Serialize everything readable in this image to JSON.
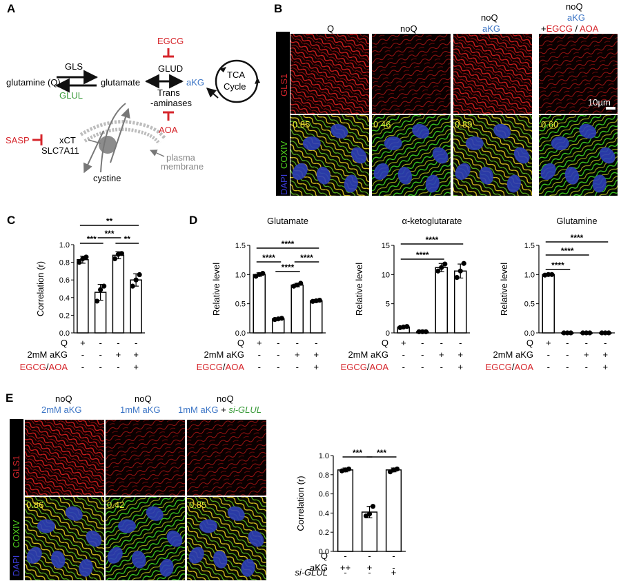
{
  "panels": {
    "a": "A",
    "b": "B",
    "c": "C",
    "d": "D",
    "e": "E"
  },
  "pathway": {
    "glutamine": "glutamine (Q)",
    "gls": "GLS",
    "glul": "GLUL",
    "glutamate": "glutamate",
    "egcg": "EGCG",
    "glud": "GLUD",
    "akg": "aKG",
    "trans": "Trans",
    "aminases": "-aminases",
    "aoa": "AOA",
    "tca": "TCA",
    "cycle": "Cycle",
    "sasp": "SASP",
    "xct": "xCT",
    "slc7a11": "SLC7A11",
    "cystine": "cystine",
    "plasma": "plasma",
    "membrane": "membrane"
  },
  "panelB": {
    "channel_gls1": "GLS1",
    "channel_coxiv": "COXIV",
    "channel_dapi": "DAPI",
    "headers": {
      "q": "Q",
      "noq": "noQ",
      "akg": "aKG",
      "plus": "+",
      "egcg": "EGCG",
      "slash": " / ",
      "aoa": "AOA"
    },
    "scalebar": "10µm",
    "corr": [
      "0.85",
      "0.46",
      "0.89",
      "0.60"
    ],
    "top_style": [
      "bright",
      "dim",
      "bright",
      "dim"
    ],
    "bottom_style": [
      "merge",
      "green",
      "merge",
      "green"
    ]
  },
  "panelE": {
    "channel_gls1": "GLS1",
    "channel_coxiv": "COXIV",
    "channel_dapi": "DAPI",
    "headers": {
      "noq": "noQ",
      "c1": "2mM aKG",
      "c2": "1mM aKG",
      "plus": " + ",
      "siglul": "si-GLUL"
    },
    "corr": [
      "0.86",
      "0.42",
      "0.85"
    ],
    "top_style": [
      "bright",
      "dim",
      "dim"
    ],
    "bottom_style": [
      "merge",
      "green",
      "merge"
    ]
  },
  "conditions_cd": {
    "rows": [
      {
        "label": "Q",
        "color": "#000000",
        "marks": [
          "+",
          "-",
          "-",
          "-"
        ]
      },
      {
        "label": "2mM aKG",
        "color": "#3b74c5",
        "marks": [
          "-",
          "-",
          "+",
          "+"
        ]
      },
      {
        "label_parts": [
          {
            "text": "EGCG",
            "color": "#d6252b"
          },
          {
            "text": "/",
            "color": "#000000"
          },
          {
            "text": "AOA",
            "color": "#d6252b"
          }
        ],
        "marks": [
          "-",
          "-",
          "-",
          "+"
        ]
      }
    ]
  },
  "conditions_e": {
    "rows": [
      {
        "label": "Q",
        "color": "#000000",
        "italic": false,
        "marks": [
          "-",
          "-",
          "-"
        ]
      },
      {
        "label": "aKG",
        "color": "#3b74c5",
        "italic": false,
        "marks": [
          "++",
          "+",
          "-"
        ]
      },
      {
        "label": "si-GLUL",
        "color": "#3a9b3a",
        "italic": true,
        "marks": [
          "-",
          "-",
          "+"
        ]
      }
    ]
  },
  "chart_data": [
    {
      "id": "C",
      "type": "bar",
      "categories": [
        "1",
        "2",
        "3",
        "4"
      ],
      "values": [
        0.83,
        0.46,
        0.88,
        0.6
      ],
      "errors": [
        0.04,
        0.09,
        0.04,
        0.07
      ],
      "points": [
        [
          0.8,
          0.84,
          0.86
        ],
        [
          0.36,
          0.49,
          0.53
        ],
        [
          0.84,
          0.89,
          0.9
        ],
        [
          0.53,
          0.6,
          0.66
        ]
      ],
      "ylabel": "Correlation (r)",
      "ylim": [
        0,
        1.0
      ],
      "yticks": [
        0,
        0.2,
        0.4,
        0.6,
        0.8,
        1.0
      ],
      "significance": [
        {
          "from": 1,
          "to": 4,
          "label": "**"
        },
        {
          "from": 1,
          "to": 2,
          "label": "***"
        },
        {
          "from": 2,
          "to": 3,
          "label": "***"
        },
        {
          "from": 3,
          "to": 4,
          "label": "**"
        }
      ]
    },
    {
      "id": "D1",
      "type": "bar",
      "title": "Glutamate",
      "categories": [
        "1",
        "2",
        "3",
        "4"
      ],
      "values": [
        1.0,
        0.24,
        0.82,
        0.55
      ],
      "errors": [
        0.03,
        0.01,
        0.03,
        0.02
      ],
      "points": [
        [
          0.97,
          1.0,
          1.02
        ],
        [
          0.23,
          0.24,
          0.25
        ],
        [
          0.8,
          0.82,
          0.85
        ],
        [
          0.54,
          0.55,
          0.56
        ]
      ],
      "ylabel": "Relative level",
      "ylim": [
        0,
        1.5
      ],
      "yticks": [
        0,
        0.5,
        1.0,
        1.5
      ],
      "significance": [
        {
          "from": 1,
          "to": 4,
          "label": "****"
        },
        {
          "from": 1,
          "to": 2,
          "label": "****"
        },
        {
          "from": 3,
          "to": 4,
          "label": "****"
        },
        {
          "from": 2,
          "to": 3,
          "label": "****"
        }
      ]
    },
    {
      "id": "D2",
      "type": "bar",
      "title": "α-ketoglutarate",
      "categories": [
        "1",
        "2",
        "3",
        "4"
      ],
      "values": [
        1.0,
        0.2,
        11.2,
        10.6
      ],
      "errors": [
        0.1,
        0.05,
        0.7,
        1.2
      ],
      "points": [
        [
          0.9,
          1.0,
          1.1
        ],
        [
          0.2,
          0.2,
          0.2
        ],
        [
          10.6,
          11.2,
          11.8
        ],
        [
          9.5,
          10.6,
          11.9
        ]
      ],
      "ylabel": "Relative level",
      "ylim": [
        0,
        15
      ],
      "yticks": [
        0,
        5,
        10,
        15
      ],
      "significance": [
        {
          "from": 1,
          "to": 4,
          "label": "****"
        },
        {
          "from": 1,
          "to": 3,
          "label": "****"
        }
      ]
    },
    {
      "id": "D3",
      "type": "bar",
      "title": "Glutamine",
      "categories": [
        "1",
        "2",
        "3",
        "4"
      ],
      "values": [
        1.0,
        0.0,
        0.0,
        0.0
      ],
      "errors": [
        0.01,
        0.0,
        0.0,
        0.0
      ],
      "points": [
        [
          0.99,
          1.0,
          1.0
        ],
        [
          0.0,
          0.0,
          0.0
        ],
        [
          0.0,
          0.0,
          0.0
        ],
        [
          0.0,
          0.0,
          0.0
        ]
      ],
      "ylabel": "Relative level",
      "ylim": [
        0,
        1.5
      ],
      "yticks": [
        0,
        0.5,
        1.0,
        1.5
      ],
      "significance": [
        {
          "from": 1,
          "to": 4,
          "label": "****"
        },
        {
          "from": 1,
          "to": 3,
          "label": "****"
        },
        {
          "from": 1,
          "to": 2,
          "label": "****"
        }
      ]
    },
    {
      "id": "E",
      "type": "bar",
      "categories": [
        "1",
        "2",
        "3"
      ],
      "values": [
        0.85,
        0.41,
        0.85
      ],
      "errors": [
        0.02,
        0.06,
        0.02
      ],
      "points": [
        [
          0.84,
          0.85,
          0.86
        ],
        [
          0.37,
          0.39,
          0.47
        ],
        [
          0.83,
          0.85,
          0.86
        ]
      ],
      "ylabel": "Correlation (r)",
      "ylim": [
        0,
        1.0
      ],
      "yticks": [
        0,
        0.2,
        0.4,
        0.6,
        0.8,
        1.0
      ],
      "significance": [
        {
          "from": 1,
          "to": 2,
          "label": "***"
        },
        {
          "from": 2,
          "to": 3,
          "label": "***"
        }
      ]
    }
  ]
}
